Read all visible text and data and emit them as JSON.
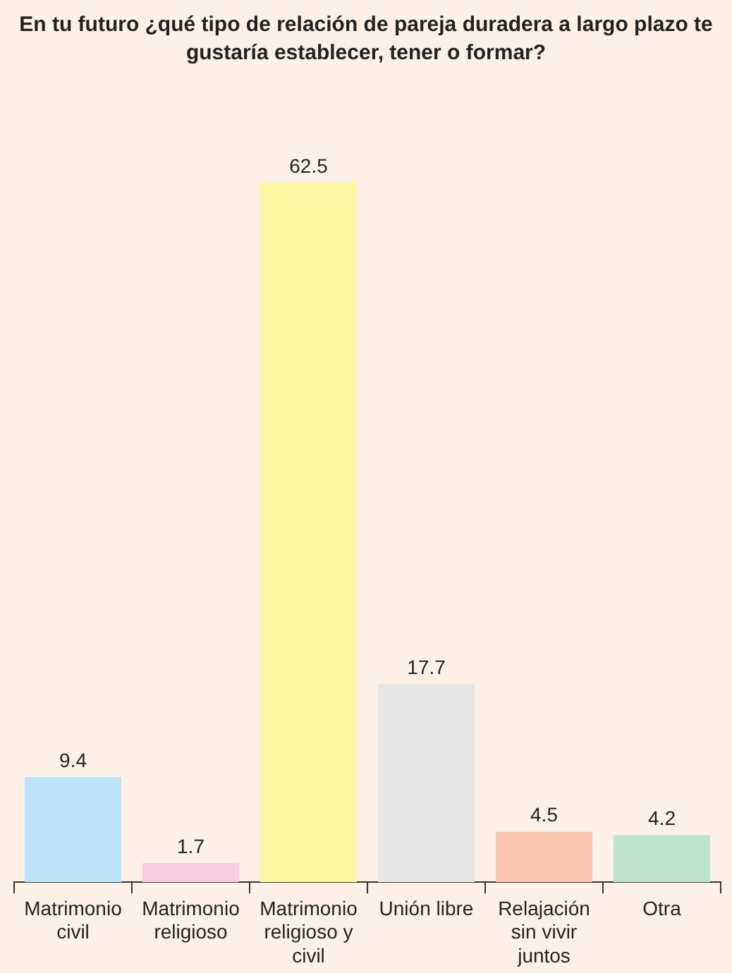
{
  "chart_data": {
    "type": "bar",
    "title": "En tu futuro ¿qué tipo de relación de pareja duradera a largo plazo te gustaría establecer, tener o formar?",
    "categories": [
      "Matrimonio civil",
      "Matrimonio religioso",
      "Matrimonio religioso y civil",
      "Unión libre",
      "Relajación sin vivir juntos",
      "Otra"
    ],
    "values": [
      9.4,
      1.7,
      62.5,
      17.7,
      4.5,
      4.2
    ],
    "colors": [
      "#bde3f6",
      "#f9cde0",
      "#fdf7a1",
      "#e6e6e6",
      "#fbc6b0",
      "#bfe3cb"
    ],
    "data_labels": true,
    "grid": false,
    "legend": false,
    "tick_labels": "x"
  }
}
